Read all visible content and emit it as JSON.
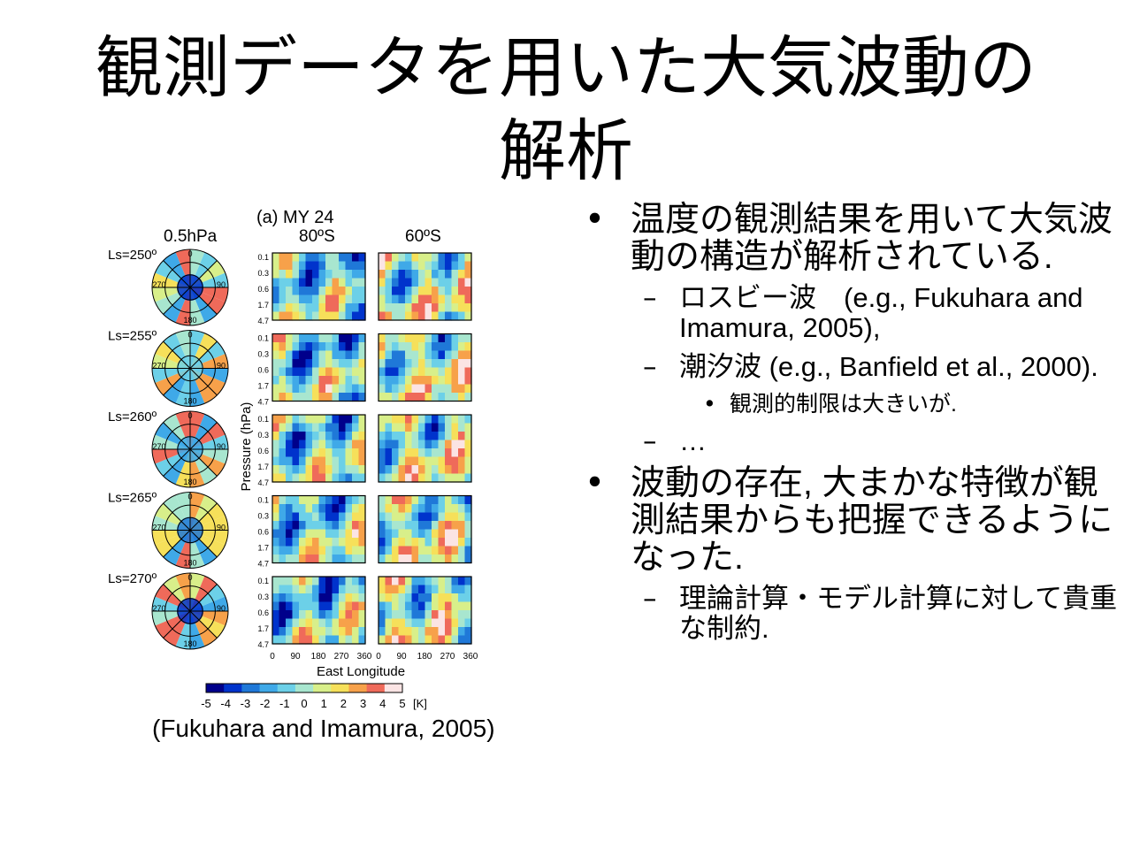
{
  "slide": {
    "title_line1": "観測データを用いた大気波動の",
    "title_line2": "解析"
  },
  "figure": {
    "panel_title": "(a) MY 24",
    "polar_header": "0.5hPa",
    "col_80s": "80ºS",
    "col_60s": "60ºS",
    "rows": [
      {
        "ls": "Ls=250º"
      },
      {
        "ls": "Ls=255º"
      },
      {
        "ls": "Ls=260º"
      },
      {
        "ls": "Ls=265º"
      },
      {
        "ls": "Ls=270º"
      }
    ],
    "polar_ticks": [
      "0",
      "90",
      "180",
      "270"
    ],
    "pressure_ticks": [
      "0.1",
      "0.3",
      "0.6",
      "1.7",
      "4.7"
    ],
    "ylabel": "Pressure (hPa)",
    "xticks_left": [
      "0",
      "90",
      "180",
      "270",
      "360"
    ],
    "xticks_right": [
      "0",
      "90",
      "180",
      "270",
      "360"
    ],
    "xlabel": "East Longitude",
    "colorbar_ticks": [
      "-5",
      "-4",
      "-3",
      "-2",
      "-1",
      "0",
      "1",
      "2",
      "3",
      "4",
      "5"
    ],
    "colorbar_unit": "[K]",
    "colorbar_colors": [
      "#00008b",
      "#0033cc",
      "#1f78d8",
      "#3fa9e8",
      "#6cd0e8",
      "#a8e6cf",
      "#d8ef8a",
      "#f6e05a",
      "#f7a14a",
      "#ef6a5a",
      "#fbe4e4"
    ]
  },
  "caption": "(Fukuhara and Imamura, 2005)",
  "bullets": [
    {
      "mark": "•",
      "level": 1,
      "text": "温度の観測結果を用いて大気波動の構造が解析されている."
    },
    {
      "mark": "–",
      "level": 2,
      "text": "ロスビー波　(e.g., Fukuhara and Imamura, 2005),"
    },
    {
      "mark": "–",
      "level": 2,
      "text": "潮汐波 (e.g., Banfield et al., 2000)."
    },
    {
      "mark": "•",
      "level": 3,
      "text": "観測的制限は大きいが."
    },
    {
      "mark": "–",
      "level": 2,
      "text": "…"
    },
    {
      "mark": "•",
      "level": 1,
      "text": "波動の存在, 大まかな特徴が観測結果からも把握できるようになった."
    },
    {
      "mark": "–",
      "level": 2,
      "text": "理論計算・モデル計算に対して貴重な制約."
    }
  ]
}
